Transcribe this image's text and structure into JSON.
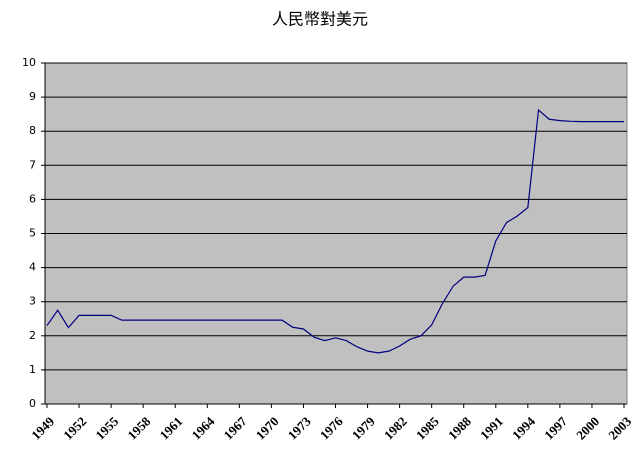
{
  "chart_data": {
    "type": "line",
    "title": "人民幣對美元",
    "x": [
      1949,
      1950,
      1951,
      1952,
      1953,
      1954,
      1955,
      1956,
      1957,
      1958,
      1959,
      1960,
      1961,
      1962,
      1963,
      1964,
      1965,
      1966,
      1967,
      1968,
      1969,
      1970,
      1971,
      1972,
      1973,
      1974,
      1975,
      1976,
      1977,
      1978,
      1979,
      1980,
      1981,
      1982,
      1983,
      1984,
      1985,
      1986,
      1987,
      1988,
      1989,
      1990,
      1991,
      1992,
      1993,
      1994,
      1995,
      1996,
      1997,
      1998,
      1999,
      2000,
      2001,
      2002,
      2003
    ],
    "series": [
      {
        "color": "#000080",
        "values": [
          2.3,
          2.75,
          2.24,
          2.6,
          2.6,
          2.6,
          2.6,
          2.46,
          2.46,
          2.46,
          2.46,
          2.46,
          2.46,
          2.46,
          2.46,
          2.46,
          2.46,
          2.46,
          2.46,
          2.46,
          2.46,
          2.46,
          2.46,
          2.25,
          2.2,
          1.96,
          1.86,
          1.94,
          1.86,
          1.68,
          1.55,
          1.5,
          1.55,
          1.7,
          1.9,
          2.0,
          2.32,
          2.94,
          3.45,
          3.72,
          3.72,
          3.77,
          4.78,
          5.32,
          5.51,
          5.76,
          8.62,
          8.35,
          8.31,
          8.29,
          8.28,
          8.28,
          8.28,
          8.28,
          8.28
        ]
      }
    ],
    "xlim": [
      1949,
      2003
    ],
    "xticks": [
      1949,
      1952,
      1955,
      1958,
      1961,
      1964,
      1967,
      1970,
      1973,
      1976,
      1979,
      1982,
      1985,
      1988,
      1991,
      1994,
      1997,
      2000,
      2003
    ],
    "ylim": [
      0,
      10
    ],
    "yticks": [
      0,
      1,
      2,
      3,
      4,
      5,
      6,
      7,
      8,
      9,
      10
    ],
    "grid": true
  }
}
